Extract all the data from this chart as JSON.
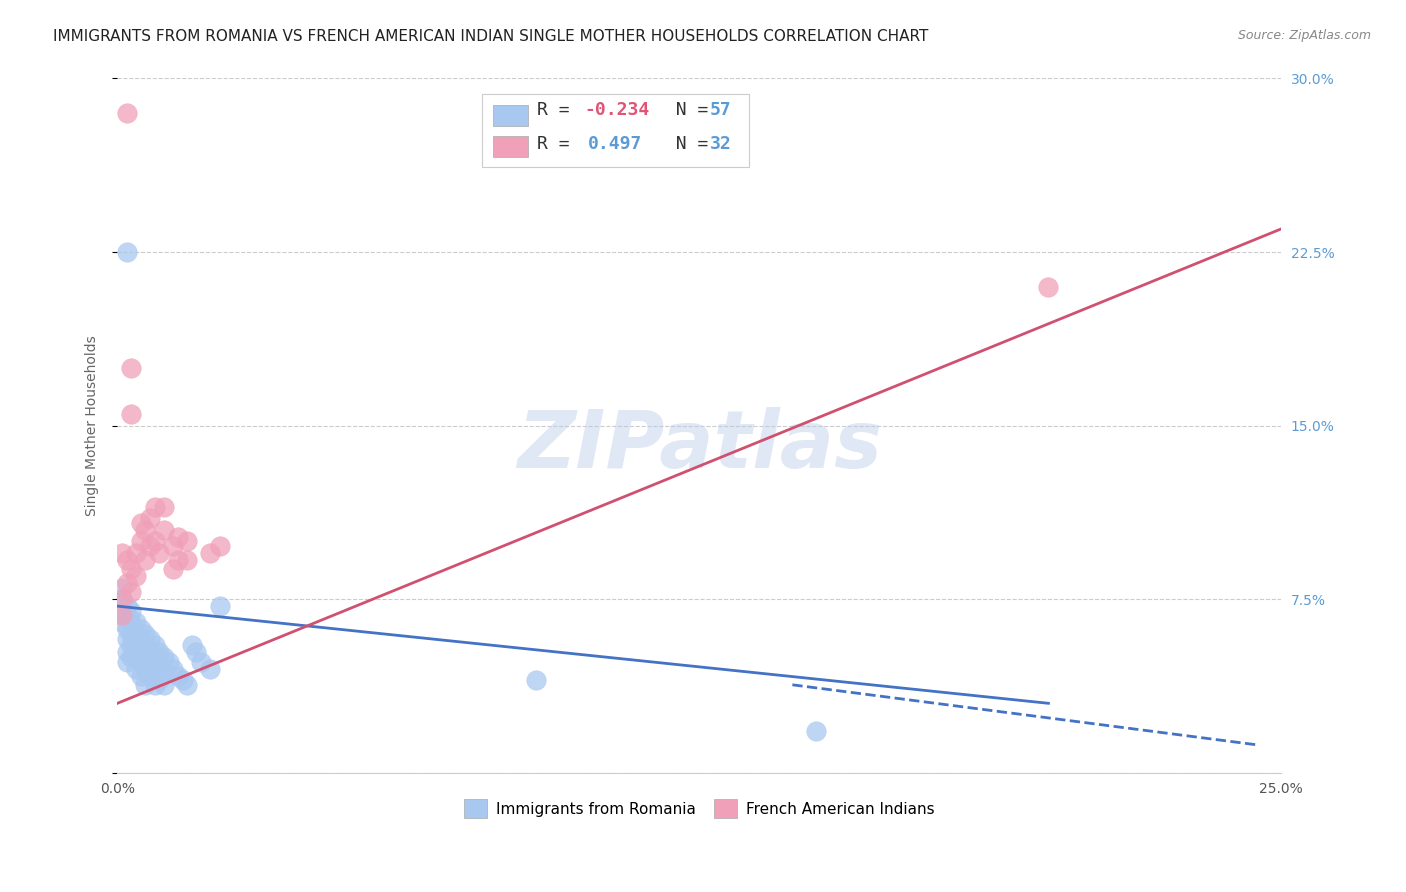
{
  "title": "IMMIGRANTS FROM ROMANIA VS FRENCH AMERICAN INDIAN SINGLE MOTHER HOUSEHOLDS CORRELATION CHART",
  "source": "Source: ZipAtlas.com",
  "ylabel": "Single Mother Households",
  "xlim": [
    0.0,
    0.25
  ],
  "ylim": [
    0.0,
    0.3
  ],
  "ytick_vals": [
    0.0,
    0.075,
    0.15,
    0.225,
    0.3
  ],
  "ytick_labels": [
    "",
    "7.5%",
    "15.0%",
    "22.5%",
    "30.0%"
  ],
  "xtick_vals": [
    0.0,
    0.05,
    0.1,
    0.15,
    0.2,
    0.25
  ],
  "xtick_labels": [
    "0.0%",
    "",
    "",
    "",
    "",
    "25.0%"
  ],
  "legend_entries_text": [
    "R = -0.234   N = 57",
    "R =  0.497   N = 32"
  ],
  "legend_bottom": [
    "Immigrants from Romania",
    "French American Indians"
  ],
  "romania_color": "#a8c8f0",
  "french_color": "#f0a0b8",
  "romania_line_color": "#4472C4",
  "french_line_color": "#D05070",
  "watermark": "ZIPatlas",
  "background_color": "#ffffff",
  "grid_color": "#cccccc",
  "title_fontsize": 11,
  "axis_label_fontsize": 10,
  "tick_fontsize": 10,
  "tick_color_right": "#5b9bd5",
  "romania_line": {
    "x0": 0.0,
    "y0": 0.072,
    "x1": 0.2,
    "y1": 0.03
  },
  "french_line": {
    "x0": 0.0,
    "y0": 0.03,
    "x1": 0.25,
    "y1": 0.235
  },
  "dashed_line": {
    "x0": 0.145,
    "y0": 0.038,
    "x1": 0.245,
    "y1": 0.012
  },
  "romania_scatter": [
    [
      0.001,
      0.08
    ],
    [
      0.001,
      0.075
    ],
    [
      0.001,
      0.068
    ],
    [
      0.001,
      0.065
    ],
    [
      0.002,
      0.072
    ],
    [
      0.002,
      0.068
    ],
    [
      0.002,
      0.062
    ],
    [
      0.002,
      0.058
    ],
    [
      0.002,
      0.052
    ],
    [
      0.002,
      0.048
    ],
    [
      0.003,
      0.07
    ],
    [
      0.003,
      0.065
    ],
    [
      0.003,
      0.06
    ],
    [
      0.003,
      0.055
    ],
    [
      0.003,
      0.05
    ],
    [
      0.004,
      0.065
    ],
    [
      0.004,
      0.06
    ],
    [
      0.004,
      0.055
    ],
    [
      0.004,
      0.05
    ],
    [
      0.004,
      0.045
    ],
    [
      0.005,
      0.062
    ],
    [
      0.005,
      0.058
    ],
    [
      0.005,
      0.052
    ],
    [
      0.005,
      0.048
    ],
    [
      0.005,
      0.042
    ],
    [
      0.006,
      0.06
    ],
    [
      0.006,
      0.055
    ],
    [
      0.006,
      0.05
    ],
    [
      0.006,
      0.045
    ],
    [
      0.006,
      0.038
    ],
    [
      0.007,
      0.058
    ],
    [
      0.007,
      0.052
    ],
    [
      0.007,
      0.048
    ],
    [
      0.007,
      0.042
    ],
    [
      0.008,
      0.055
    ],
    [
      0.008,
      0.05
    ],
    [
      0.008,
      0.045
    ],
    [
      0.008,
      0.038
    ],
    [
      0.009,
      0.052
    ],
    [
      0.009,
      0.046
    ],
    [
      0.009,
      0.04
    ],
    [
      0.01,
      0.05
    ],
    [
      0.01,
      0.044
    ],
    [
      0.01,
      0.038
    ],
    [
      0.011,
      0.048
    ],
    [
      0.012,
      0.045
    ],
    [
      0.013,
      0.042
    ],
    [
      0.014,
      0.04
    ],
    [
      0.015,
      0.038
    ],
    [
      0.016,
      0.055
    ],
    [
      0.017,
      0.052
    ],
    [
      0.018,
      0.048
    ],
    [
      0.02,
      0.045
    ],
    [
      0.002,
      0.225
    ],
    [
      0.09,
      0.04
    ],
    [
      0.15,
      0.018
    ],
    [
      0.022,
      0.072
    ]
  ],
  "french_scatter": [
    [
      0.001,
      0.075
    ],
    [
      0.001,
      0.068
    ],
    [
      0.001,
      0.095
    ],
    [
      0.002,
      0.082
    ],
    [
      0.002,
      0.092
    ],
    [
      0.002,
      0.285
    ],
    [
      0.003,
      0.078
    ],
    [
      0.003,
      0.088
    ],
    [
      0.003,
      0.175
    ],
    [
      0.003,
      0.155
    ],
    [
      0.004,
      0.085
    ],
    [
      0.004,
      0.095
    ],
    [
      0.005,
      0.108
    ],
    [
      0.005,
      0.1
    ],
    [
      0.006,
      0.092
    ],
    [
      0.006,
      0.105
    ],
    [
      0.007,
      0.098
    ],
    [
      0.007,
      0.11
    ],
    [
      0.008,
      0.115
    ],
    [
      0.008,
      0.1
    ],
    [
      0.009,
      0.095
    ],
    [
      0.01,
      0.105
    ],
    [
      0.01,
      0.115
    ],
    [
      0.012,
      0.088
    ],
    [
      0.012,
      0.098
    ],
    [
      0.013,
      0.092
    ],
    [
      0.013,
      0.102
    ],
    [
      0.015,
      0.1
    ],
    [
      0.015,
      0.092
    ],
    [
      0.02,
      0.095
    ],
    [
      0.022,
      0.098
    ],
    [
      0.2,
      0.21
    ]
  ]
}
